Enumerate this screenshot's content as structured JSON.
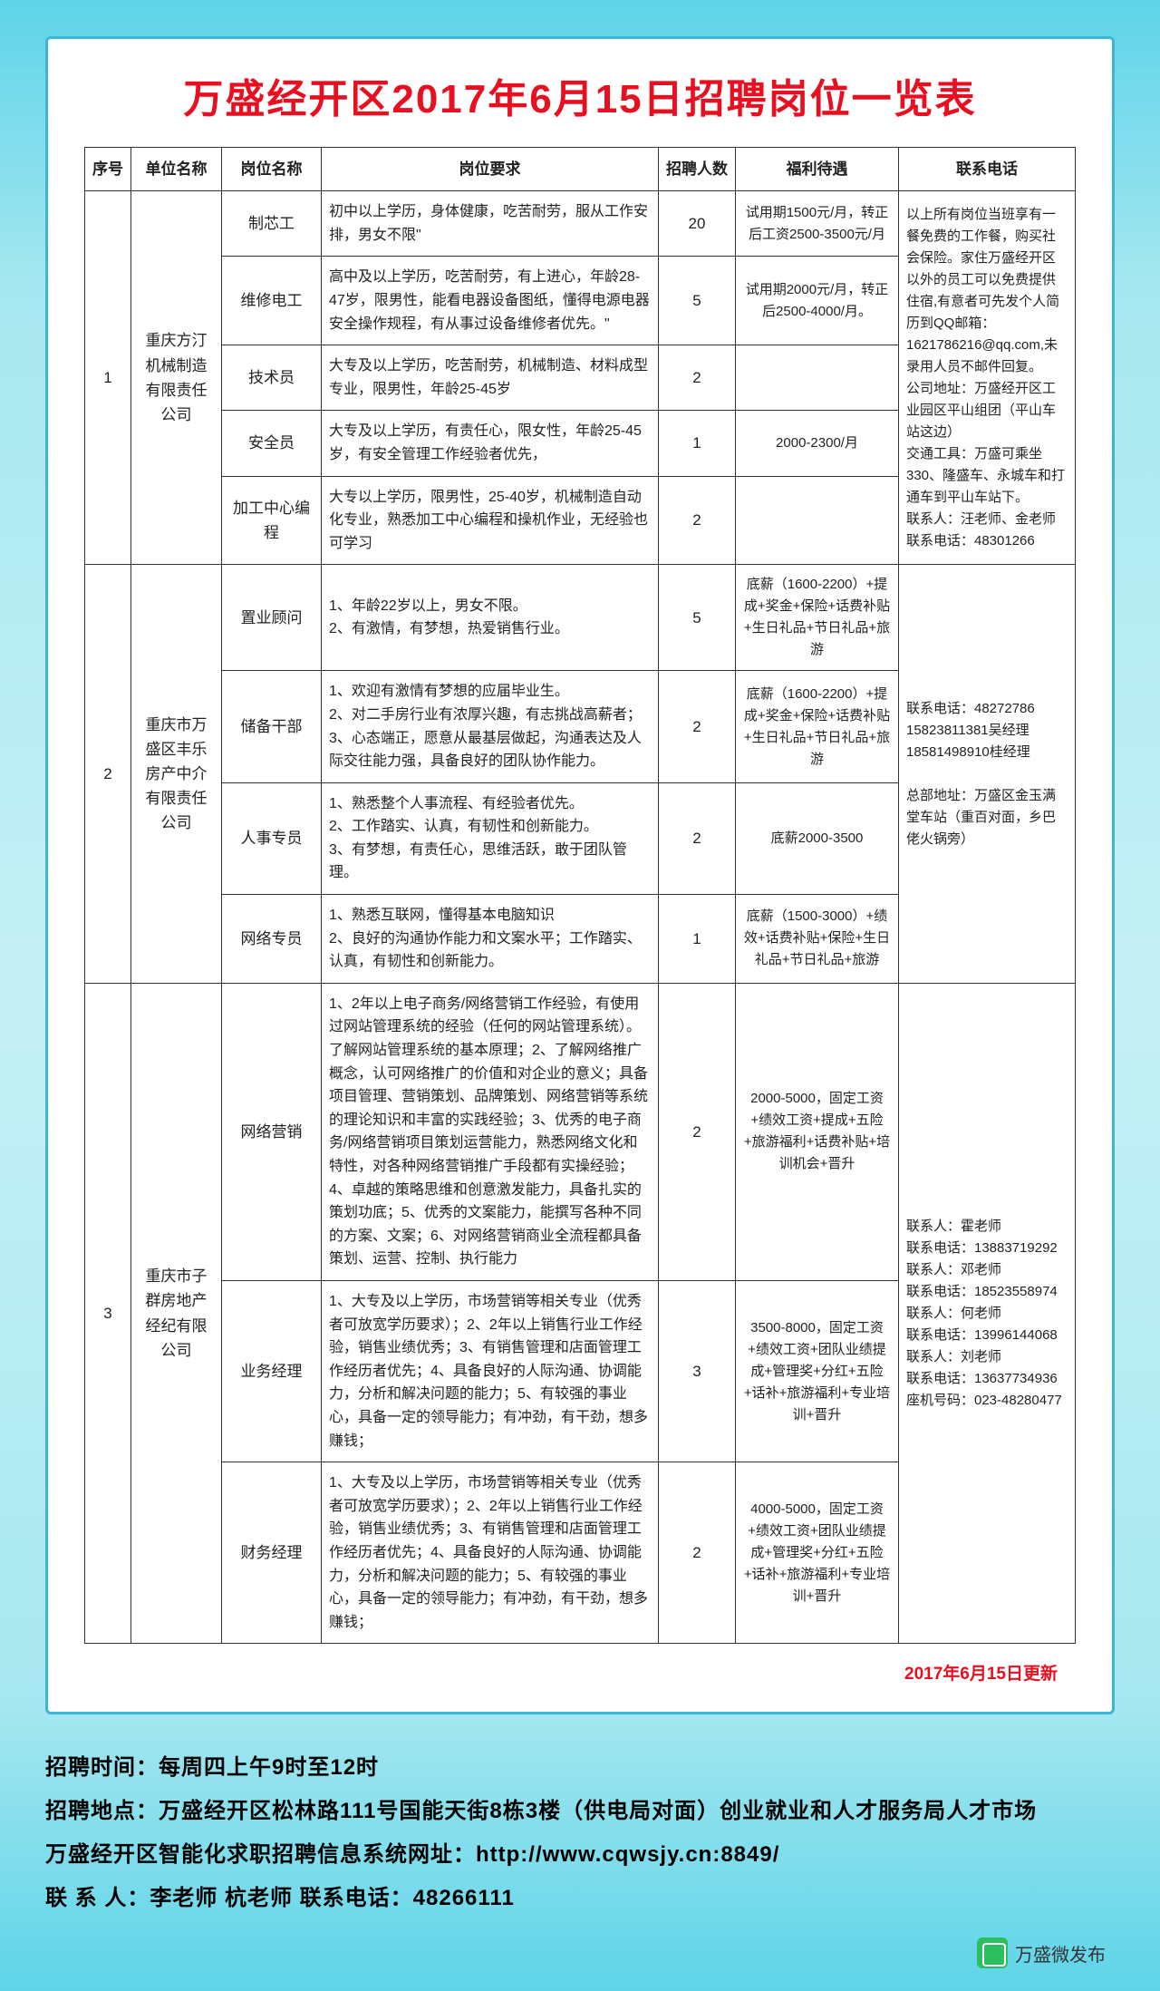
{
  "title": "万盛经开区2017年6月15日招聘岗位一览表",
  "headers": {
    "seq": "序号",
    "company": "单位名称",
    "position": "岗位名称",
    "requirement": "岗位要求",
    "count": "招聘人数",
    "benefit": "福利待遇",
    "contact": "联系电话"
  },
  "companies": [
    {
      "seq": "1",
      "name": "重庆方汀机械制造有限责任公司",
      "contact": "以上所有岗位当班享有一餐免费的工作餐，购买社会保险。家住万盛经开区以外的员工可以免费提供住宿,有意者可先发个人简历到QQ邮箱：1621786216@qq.com,未录用人员不邮件回复。\n公司地址：万盛经开区工业园区平山组团（平山车站这边）\n交通工具：万盛可乘坐330、隆盛车、永城车和打通车到平山车站下。\n联系人：汪老师、金老师    联系电话：48301266",
      "positions": [
        {
          "name": "制芯工",
          "req": "初中以上学历，身体健康，吃苦耐劳，服从工作安排，男女不限\"",
          "count": "20",
          "benefit": "试用期1500元/月，转正后工资2500-3500元/月"
        },
        {
          "name": "维修电工",
          "req": "高中及以上学历，吃苦耐劳，有上进心，年龄28-47岁，限男性，能看电器设备图纸，懂得电源电器安全操作规程，有从事过设备维修者优先。\"",
          "count": "5",
          "benefit": "试用期2000元/月，转正后2500-4000/月。"
        },
        {
          "name": "技术员",
          "req": "大专及以上学历，吃苦耐劳，机械制造、材料成型专业，限男性，年龄25-45岁",
          "count": "2",
          "benefit": ""
        },
        {
          "name": "安全员",
          "req": "大专及以上学历，有责任心，限女性，年龄25-45岁，有安全管理工作经验者优先，",
          "count": "1",
          "benefit": "2000-2300/月"
        },
        {
          "name": "加工中心编程",
          "req": "大专以上学历，限男性，25-40岁，机械制造自动化专业，熟悉加工中心编程和操机作业，无经验也可学习",
          "count": "2",
          "benefit": ""
        }
      ]
    },
    {
      "seq": "2",
      "name": "重庆市万盛区丰乐房产中介有限责任公司",
      "contact": "联系电话：48272786\n15823811381吴经理\n18581498910桂经理\n\n总部地址：万盛区金玉满堂车站（重百对面，乡巴佬火锅旁）",
      "positions": [
        {
          "name": "置业顾问",
          "req": "1、年龄22岁以上，男女不限。\n2、有激情，有梦想，热爱销售行业。",
          "count": "5",
          "benefit": "底薪（1600-2200）+提成+奖金+保险+话费补贴+生日礼品+节日礼品+旅游"
        },
        {
          "name": "储备干部",
          "req": "1、欢迎有激情有梦想的应届毕业生。\n2、对二手房行业有浓厚兴趣，有志挑战高薪者；\n3、心态端正，愿意从最基层做起，沟通表达及人际交往能力强，具备良好的团队协作能力。",
          "count": "2",
          "benefit": "底薪（1600-2200）+提成+奖金+保险+话费补贴+生日礼品+节日礼品+旅游"
        },
        {
          "name": "人事专员",
          "req": "1、熟悉整个人事流程、有经验者优先。\n2、工作踏实、认真，有韧性和创新能力。\n3、有梦想，有责任心，思维活跃，敢于团队管理。",
          "count": "2",
          "benefit": "底薪2000-3500"
        },
        {
          "name": "网络专员",
          "req": "1、熟悉互联网，懂得基本电脑知识\n2、良好的沟通协作能力和文案水平；工作踏实、认真，有韧性和创新能力。",
          "count": "1",
          "benefit": "底薪（1500-3000）+绩效+话费补贴+保险+生日礼品+节日礼品+旅游"
        }
      ]
    },
    {
      "seq": "3",
      "name": "重庆市子群房地产经纪有限公司",
      "contact": "联系人：霍老师\n联系电话：13883719292\n联系人：邓老师\n联系电话：18523558974\n联系人：何老师\n联系电话：13996144068\n联系人：刘老师\n联系电话：13637734936\n座机号码：023-48280477",
      "positions": [
        {
          "name": "网络营销",
          "req": "1、2年以上电子商务/网络营销工作经验，有使用过网站管理系统的经验（任何的网站管理系统）。了解网站管理系统的基本原理；2、了解网络推广概念，认可网络推广的价值和对企业的意义；具备项目管理、营销策划、品牌策划、网络营销等系统的理论知识和丰富的实践经验；3、优秀的电子商务/网络营销项目策划运营能力，熟悉网络文化和特性，对各种网络营销推广手段都有实操经验；4、卓越的策略思维和创意激发能力，具备扎实的策划功底；5、优秀的文案能力，能撰写各种不同的方案、文案；6、对网络营销商业全流程都具备策划、运营、控制、执行能力",
          "count": "2",
          "benefit": "2000-5000，固定工资+绩效工资+提成+五险+旅游福利+话费补贴+培训机会+晋升"
        },
        {
          "name": "业务经理",
          "req": "1、大专及以上学历，市场营销等相关专业（优秀者可放宽学历要求）；2、2年以上销售行业工作经验，销售业绩优秀；3、有销售管理和店面管理工作经历者优先；4、具备良好的人际沟通、协调能力，分析和解决问题的能力；5、有较强的事业心，具备一定的领导能力；有冲劲，有干劲，想多赚钱；",
          "count": "3",
          "benefit": "3500-8000，固定工资+绩效工资+团队业绩提成+管理奖+分红+五险+话补+旅游福利+专业培训+晋升"
        },
        {
          "name": "财务经理",
          "req": "1、大专及以上学历，市场营销等相关专业（优秀者可放宽学历要求）；2、2年以上销售行业工作经验，销售业绩优秀；3、有销售管理和店面管理工作经历者优先；4、具备良好的人际沟通、协调能力，分析和解决问题的能力；5、有较强的事业心，具备一定的领导能力；有冲劲，有干劲，想多赚钱；",
          "count": "2",
          "benefit": "4000-5000，固定工资+绩效工资+团队业绩提成+管理奖+分红+五险+话补+旅游福利+专业培训+晋升"
        }
      ]
    }
  ],
  "update": "2017年6月15日更新",
  "footer": {
    "time": "招聘时间：每周四上午9时至12时",
    "addr": "招聘地点：万盛经开区松林路111号国能天街8栋3楼（供电局对面）创业就业和人才服务局人才市场",
    "web": "万盛经开区智能化求职招聘信息系统网址：http://www.cqwsjy.cn:8849/",
    "contact": "联 系 人：李老师  杭老师    联系电话：48266111"
  },
  "watermark": "万盛微发布"
}
